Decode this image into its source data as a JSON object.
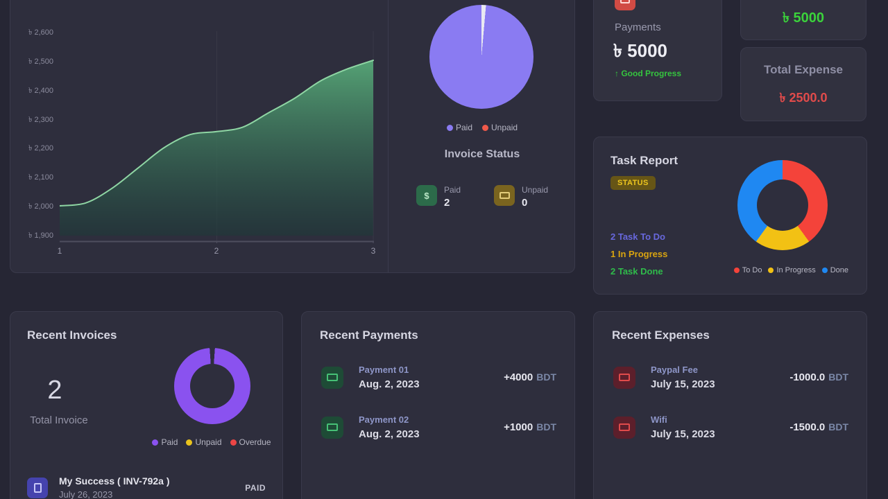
{
  "revenue_chart": {
    "type": "area",
    "y_ticks": [
      "৳ 2,600",
      "৳ 2,500",
      "৳ 2,400",
      "৳ 2,300",
      "৳ 2,200",
      "৳ 2,100",
      "৳ 2,000",
      "৳ 1,900"
    ],
    "x_ticks": [
      "1",
      "2",
      "3"
    ],
    "x": [
      1,
      2,
      3
    ],
    "values": [
      2000,
      2250,
      2500
    ],
    "samples": [
      2000,
      2010,
      2060,
      2130,
      2200,
      2245,
      2255,
      2270,
      2320,
      2370,
      2430,
      2470,
      2500
    ],
    "ylim": [
      1900,
      2600
    ],
    "line_color": "#8fd6a4",
    "fill_top": "#57a878",
    "fill_bottom": "#1d3a38"
  },
  "invoice_status": {
    "title": "Invoice Status",
    "pie_colors": {
      "paid": "#8a7bf2",
      "sliver": "#e9e9f2"
    },
    "values": {
      "paid": 2,
      "unpaid": 0
    },
    "legend": [
      {
        "label": "Paid",
        "color": "#8a7bf2"
      },
      {
        "label": "Unpaid",
        "color": "#f0594a"
      }
    ],
    "stats": [
      {
        "label": "Paid",
        "value": "2",
        "icon": "$"
      },
      {
        "label": "Unpaid",
        "value": "0",
        "icon": "banknote"
      }
    ]
  },
  "payments_card": {
    "label": "Payments",
    "amount": "৳ 5000",
    "trend_arrow": "↑",
    "trend": "Good Progress"
  },
  "income_card": {
    "amount": "৳ 5000"
  },
  "expense_card": {
    "label": "Total Expense",
    "amount": "৳ 2500.0"
  },
  "task_report": {
    "title": "Task Report",
    "badge": "STATUS",
    "lines": [
      {
        "text": "2 Task To Do",
        "color": "#6868dd"
      },
      {
        "text": "1 In Progress",
        "color": "#d9a410"
      },
      {
        "text": "2 Task Done",
        "color": "#2fbb4a"
      }
    ],
    "chart": {
      "type": "donut",
      "labels": [
        "To Do",
        "In Progress",
        "Done"
      ],
      "values": [
        2,
        1,
        2
      ],
      "colors": [
        "#f4433a",
        "#f2c114",
        "#1f88f2"
      ]
    },
    "legend": [
      {
        "label": "To Do",
        "color": "#f4433a"
      },
      {
        "label": "In Progress",
        "color": "#f2c114"
      },
      {
        "label": "Done",
        "color": "#1f88f2"
      }
    ]
  },
  "recent_invoices": {
    "title": "Recent Invoices",
    "count": "2",
    "count_label": "Total Invoice",
    "donut": {
      "values": [
        2,
        0,
        0
      ],
      "colors": [
        "#8a52ef",
        "#e9c31d",
        "#ec4545"
      ]
    },
    "legend": [
      {
        "label": "Paid",
        "color": "#8a52ef"
      },
      {
        "label": "Unpaid",
        "color": "#e9c31d"
      },
      {
        "label": "Overdue",
        "color": "#ec4545"
      }
    ],
    "items": [
      {
        "name": "My Success ( INV-792a )",
        "date": "July 26, 2023",
        "status": "PAID"
      }
    ]
  },
  "recent_payments": {
    "title": "Recent Payments",
    "items": [
      {
        "name": "Payment 01",
        "date": "Aug. 2, 2023",
        "sign": "+",
        "amount": "4000",
        "currency": "BDT"
      },
      {
        "name": "Payment 02",
        "date": "Aug. 2, 2023",
        "sign": "+",
        "amount": "1000",
        "currency": "BDT"
      }
    ]
  },
  "recent_expenses": {
    "title": "Recent Expenses",
    "items": [
      {
        "name": "Paypal Fee",
        "date": "July 15, 2023",
        "sign": "-",
        "amount": "1000.0",
        "currency": "BDT"
      },
      {
        "name": "Wifi",
        "date": "July 15, 2023",
        "sign": "-",
        "amount": "1500.0",
        "currency": "BDT"
      }
    ]
  }
}
